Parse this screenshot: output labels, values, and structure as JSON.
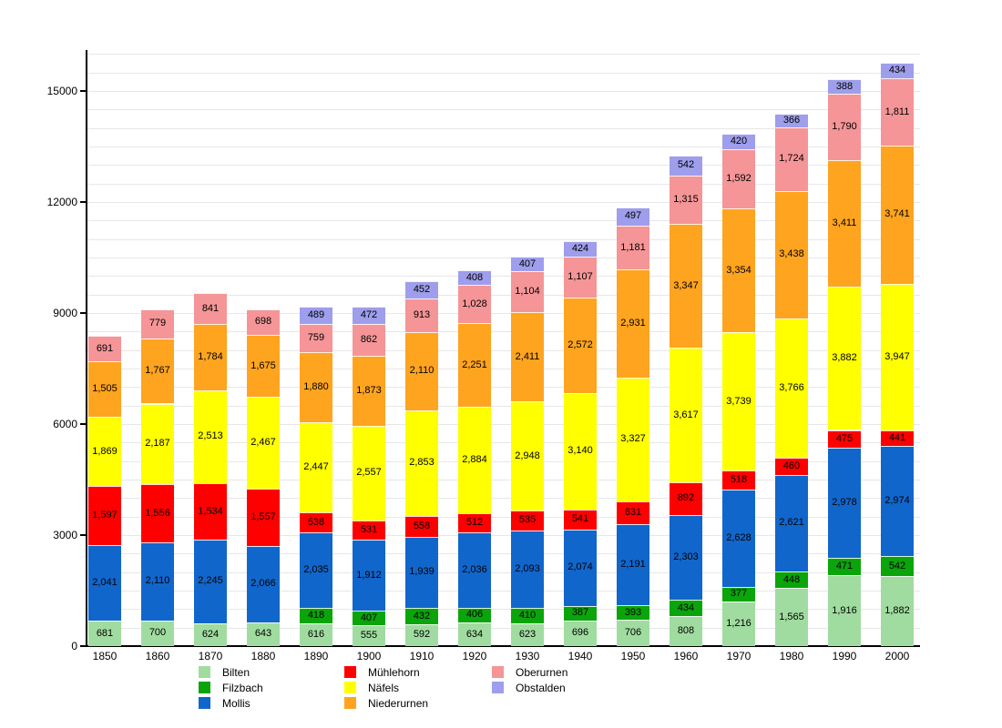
{
  "chart_data": {
    "type": "bar",
    "stacked": true,
    "title": "",
    "xlabel": "",
    "ylabel": "",
    "categories": [
      "1850",
      "1860",
      "1870",
      "1880",
      "1890",
      "1900",
      "1910",
      "1920",
      "1930",
      "1940",
      "1950",
      "1960",
      "1970",
      "1980",
      "1990",
      "2000"
    ],
    "series": [
      {
        "name": "Bilten",
        "color": "#A0DCA0",
        "values": [
          681,
          700,
          624,
          643,
          616,
          555,
          592,
          634,
          623,
          696,
          706,
          808,
          1216,
          1565,
          1916,
          1882
        ]
      },
      {
        "name": "Filzbach",
        "color": "#0AA50A",
        "values": [
          null,
          null,
          null,
          null,
          418,
          407,
          432,
          406,
          410,
          387,
          393,
          434,
          377,
          448,
          471,
          542
        ]
      },
      {
        "name": "Mollis",
        "color": "#1166CB",
        "values": [
          2041,
          2110,
          2245,
          2066,
          2035,
          1912,
          1939,
          2036,
          2093,
          2074,
          2191,
          2303,
          2628,
          2621,
          2978,
          2974
        ]
      },
      {
        "name": "Mühlehorn",
        "color": "#FF0000",
        "values": [
          1597,
          1556,
          1534,
          1557,
          538,
          531,
          558,
          512,
          535,
          541,
          631,
          892,
          518,
          460,
          475,
          441
        ]
      },
      {
        "name": "Näfels",
        "color": "#FFFF00",
        "values": [
          1869,
          2187,
          2513,
          2467,
          2447,
          2557,
          2853,
          2884,
          2948,
          3140,
          3327,
          3617,
          3739,
          3766,
          3882,
          3947
        ]
      },
      {
        "name": "Niederurnen",
        "color": "#FFA41E",
        "values": [
          1505,
          1767,
          1784,
          1675,
          1880,
          1873,
          2110,
          2251,
          2411,
          2572,
          2931,
          3347,
          3354,
          3438,
          3411,
          3741
        ]
      },
      {
        "name": "Oberurnen",
        "color": "#F59597",
        "values": [
          691,
          779,
          841,
          698,
          759,
          862,
          913,
          1028,
          1104,
          1107,
          1181,
          1315,
          1592,
          1724,
          1790,
          1811
        ]
      },
      {
        "name": "Obstalden",
        "color": "#9E9EEC",
        "values": [
          null,
          null,
          null,
          null,
          489,
          472,
          452,
          408,
          407,
          424,
          497,
          542,
          420,
          366,
          388,
          434
        ]
      }
    ],
    "y_axis": {
      "min": 0,
      "max": 16000,
      "minor_grid_step": 500,
      "tick_values": [
        0,
        3000,
        6000,
        9000,
        12000,
        15000
      ],
      "tick_labels": [
        "0",
        "3000",
        "6000",
        "9000",
        "12000",
        "15000"
      ]
    },
    "legend": {
      "position": "bottom",
      "rows_per_column": 3,
      "entries": [
        "Bilten",
        "Filzbach",
        "Mollis",
        "Mühlehorn",
        "Näfels",
        "Niederurnen",
        "Oberurnen",
        "Obstalden"
      ]
    },
    "grid": true,
    "value_labels_shown": true
  },
  "colors": {
    "grid": "#E7E7E7",
    "axis": "#000000",
    "value_label_text": "#000000",
    "background": "#FFFFFF"
  }
}
